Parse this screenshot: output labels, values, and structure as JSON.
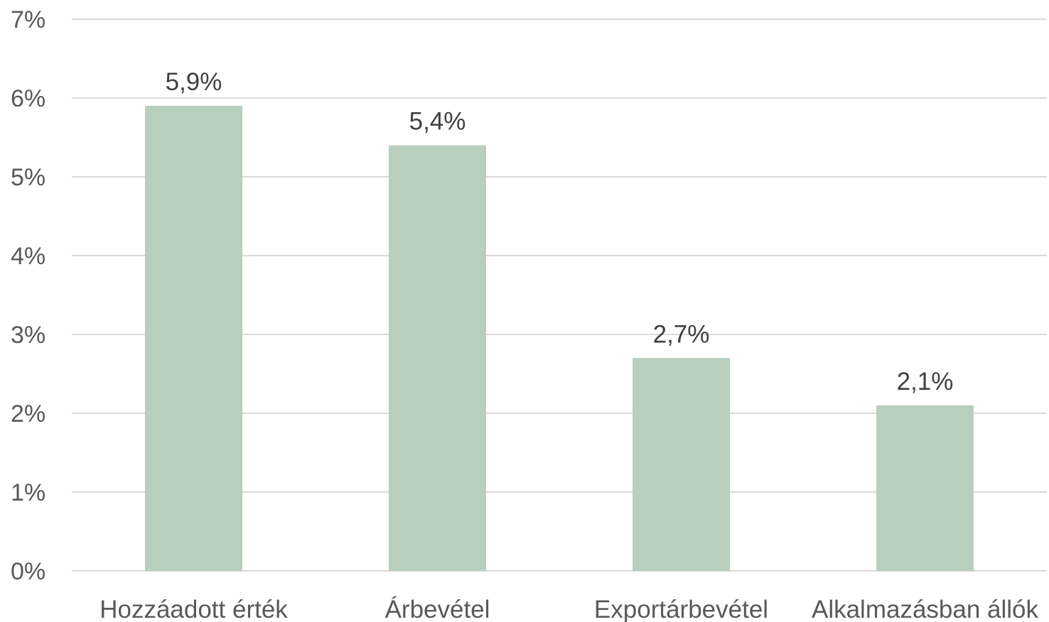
{
  "chart_data": {
    "type": "bar",
    "categories": [
      "Hozzáadott érték",
      "Árbevétel",
      "Exportárbevétel",
      "Alkalmazásban állók"
    ],
    "values": [
      5.9,
      5.4,
      2.7,
      2.1
    ],
    "data_labels": [
      "5,9%",
      "5,4%",
      "2,7%",
      "2,1%"
    ],
    "title": "",
    "xlabel": "",
    "ylabel": "",
    "ylim": [
      0,
      7
    ],
    "yticks": [
      0,
      1,
      2,
      3,
      4,
      5,
      6,
      7
    ],
    "ytick_labels": [
      "0%",
      "1%",
      "2%",
      "3%",
      "4%",
      "5%",
      "6%",
      "7%"
    ],
    "grid": true,
    "legend": "none",
    "bar_color": "#b9cfbe"
  }
}
